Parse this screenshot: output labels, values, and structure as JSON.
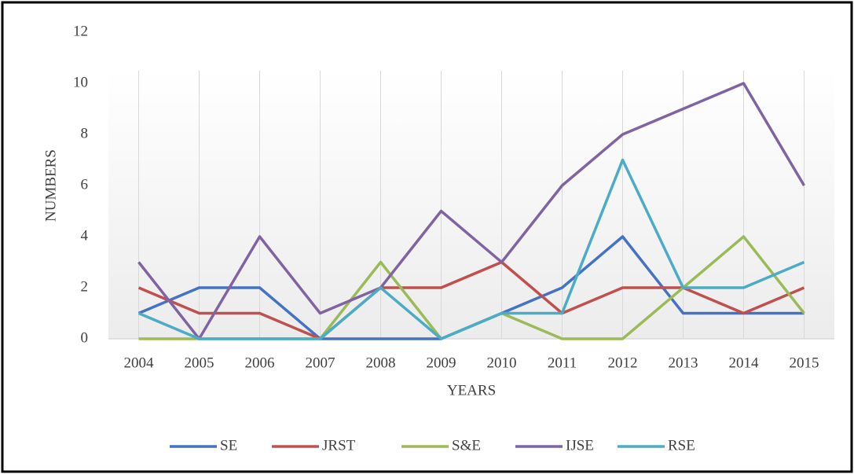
{
  "chart_data": {
    "type": "line",
    "x_label": "YEARS",
    "y_label": "NUMBERS",
    "categories": [
      "2004",
      "2005",
      "2006",
      "2007",
      "2008",
      "2009",
      "2010",
      "2011",
      "2012",
      "2013",
      "2014",
      "2015"
    ],
    "series": [
      {
        "name": "SE",
        "color": "#4472c4",
        "values": [
          1,
          2,
          2,
          0,
          0,
          0,
          1,
          2,
          4,
          1,
          1,
          1
        ]
      },
      {
        "name": "JRST",
        "color": "#c0504d",
        "values": [
          2,
          1,
          1,
          0,
          2,
          2,
          3,
          1,
          2,
          2,
          1,
          2
        ]
      },
      {
        "name": "S&E",
        "color": "#9bbb59",
        "values": [
          0,
          0,
          0,
          0,
          3,
          0,
          1,
          0,
          0,
          2,
          4,
          1
        ]
      },
      {
        "name": "IJSE",
        "color": "#8064a2",
        "values": [
          3,
          0,
          4,
          1,
          2,
          5,
          3,
          6,
          8,
          9,
          10,
          6
        ]
      },
      {
        "name": "RSE",
        "color": "#4bacc6",
        "values": [
          1,
          0,
          0,
          0,
          2,
          0,
          1,
          1,
          7,
          2,
          2,
          3
        ]
      }
    ],
    "ylim": [
      0,
      12
    ],
    "yticks": [
      0,
      2,
      4,
      6,
      8,
      10,
      12
    ],
    "grid": "x",
    "legend": "bottom"
  }
}
